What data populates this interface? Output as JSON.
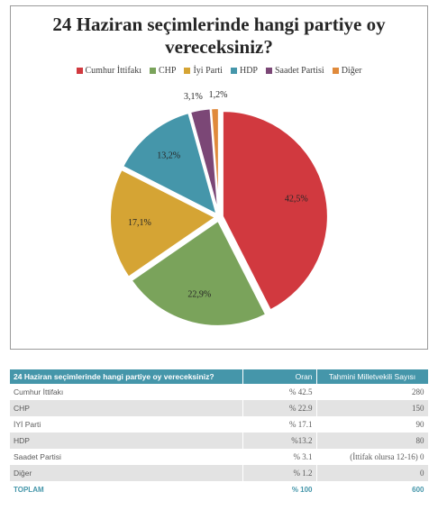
{
  "chart_data": {
    "type": "pie",
    "title": "24 Haziran seçimlerinde hangi partiye oy vereceksiniz?",
    "categories": [
      "Cumhur İttifakı",
      "CHP",
      "İyi Parti",
      "HDP",
      "Saadet Partisi",
      "Diğer"
    ],
    "values": [
      42.5,
      22.9,
      17.1,
      13.2,
      3.1,
      1.2
    ],
    "value_labels": [
      "42,5%",
      "22,9%",
      "17,1%",
      "13,2%",
      "3,1%",
      "1,2%"
    ],
    "colors": [
      "#d1393f",
      "#7aa35b",
      "#d5a434",
      "#4596aa",
      "#7b4776",
      "#e08a3b"
    ],
    "exploded": true,
    "legend_position": "top"
  },
  "table": {
    "headers": [
      "24 Haziran seçimlerinde hangi partiye oy vereceksiniz?",
      "Oran",
      "Tahmini Milletvekili Sayısı"
    ],
    "rows": [
      [
        "Cumhur İttifakı",
        "% 42.5",
        "280"
      ],
      [
        "CHP",
        "% 22.9",
        "150"
      ],
      [
        "İYİ Parti",
        "% 17.1",
        "90"
      ],
      [
        "HDP",
        "%13.2",
        "80"
      ],
      [
        "Saadet Partisi",
        "% 3.1",
        "(İttifak olursa 12-16) 0"
      ],
      [
        "Diğer",
        "% 1.2",
        "0"
      ]
    ],
    "total": [
      "TOPLAM",
      "% 100",
      "600"
    ]
  }
}
